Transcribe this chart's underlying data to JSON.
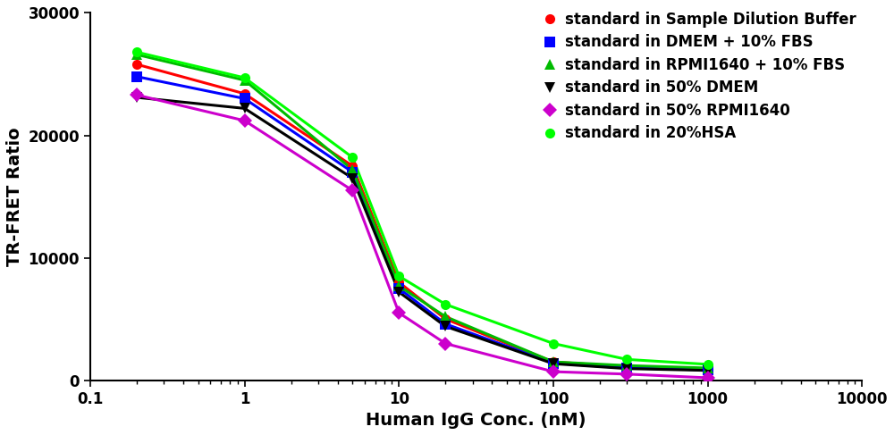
{
  "xlabel": "Human IgG Conc. (nM)",
  "ylabel": "TR-FRET Ratio",
  "xlim": [
    0.1,
    10000
  ],
  "ylim": [
    0,
    30000
  ],
  "yticks": [
    0,
    10000,
    20000,
    30000
  ],
  "series": [
    {
      "label": "standard in Sample Dilution Buffer",
      "color": "#ff0000",
      "marker": "o",
      "marker_size": 8,
      "x": [
        0.2,
        1.0,
        5.0,
        10.0,
        20.0,
        100.0,
        300.0,
        1000.0
      ],
      "y": [
        25800,
        23400,
        17500,
        8000,
        5000,
        1500,
        1100,
        900
      ]
    },
    {
      "label": "standard in DMEM + 10% FBS",
      "color": "#0000ff",
      "marker": "s",
      "marker_size": 8,
      "x": [
        0.2,
        1.0,
        5.0,
        10.0,
        20.0,
        100.0,
        300.0,
        1000.0
      ],
      "y": [
        24800,
        23000,
        17000,
        7500,
        4600,
        1400,
        1000,
        850
      ]
    },
    {
      "label": "standard in RPMI1640 + 10% FBS",
      "color": "#00bb00",
      "marker": "^",
      "marker_size": 8,
      "x": [
        0.2,
        1.0,
        5.0,
        10.0,
        20.0,
        100.0,
        300.0,
        1000.0
      ],
      "y": [
        26600,
        24500,
        17200,
        7700,
        5200,
        1500,
        1200,
        1000
      ]
    },
    {
      "label": "standard in 50% DMEM",
      "color": "#000000",
      "marker": "v",
      "marker_size": 8,
      "x": [
        0.2,
        1.0,
        5.0,
        10.0,
        20.0,
        100.0,
        300.0,
        1000.0
      ],
      "y": [
        23100,
        22200,
        16500,
        7200,
        4400,
        1350,
        950,
        800
      ]
    },
    {
      "label": "standard in 50% RPMI1640",
      "color": "#cc00cc",
      "marker": "D",
      "marker_size": 8,
      "x": [
        0.2,
        1.0,
        5.0,
        10.0,
        20.0,
        100.0,
        300.0,
        1000.0
      ],
      "y": [
        23300,
        21200,
        15500,
        5500,
        3000,
        700,
        500,
        200
      ]
    },
    {
      "label": "standard in 20%HSA",
      "color": "#00ff00",
      "marker": "o",
      "marker_size": 8,
      "x": [
        0.2,
        1.0,
        5.0,
        10.0,
        20.0,
        100.0,
        300.0,
        1000.0
      ],
      "y": [
        26800,
        24700,
        18200,
        8500,
        6200,
        3000,
        1700,
        1300
      ]
    }
  ],
  "background_color": "#ffffff",
  "legend_fontsize": 12,
  "axis_label_fontsize": 14,
  "tick_fontsize": 12
}
